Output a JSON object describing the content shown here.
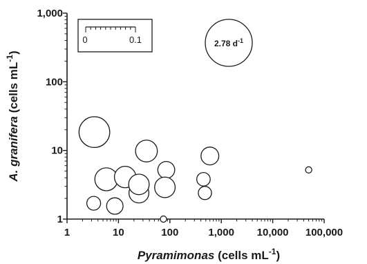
{
  "chart_data": {
    "type": "scatter",
    "xlabel": {
      "italic": "Pyramimonas",
      "rest": " (cells mL",
      "sup": "-1",
      "end": ")"
    },
    "ylabel": {
      "italic": "A. granifera",
      "rest": " (cells mL",
      "sup": "-1",
      "end": ")"
    },
    "x_scale": "log",
    "y_scale": "log",
    "xlim": [
      1,
      100000
    ],
    "ylim": [
      1,
      1000
    ],
    "x_ticks": [
      1,
      10,
      100,
      1000,
      10000,
      100000
    ],
    "x_tick_labels": [
      "1",
      "10",
      "100",
      "1,000",
      "10,000",
      "100,000"
    ],
    "y_ticks": [
      1,
      10,
      100,
      1000
    ],
    "y_tick_labels": [
      "1",
      "10",
      "100",
      "1,000"
    ],
    "size_variable": "rate (d-1)",
    "size_legend": {
      "scale_bar": {
        "min": 0,
        "max": 0.1,
        "label_min": "0",
        "label_max": "0.1"
      },
      "reference_bubble": {
        "value": 2.78,
        "label": "2.78 d",
        "sup": "-1"
      }
    },
    "points": [
      {
        "x": 3.4,
        "y": 18.5,
        "size": 1.19
      },
      {
        "x": 3.3,
        "y": 1.7,
        "size": 0.24
      },
      {
        "x": 8.5,
        "y": 1.55,
        "size": 0.34
      },
      {
        "x": 5.8,
        "y": 3.8,
        "size": 0.66
      },
      {
        "x": 13.5,
        "y": 4.1,
        "size": 0.58
      },
      {
        "x": 25,
        "y": 2.4,
        "size": 0.5
      },
      {
        "x": 25,
        "y": 3.2,
        "size": 0.53
      },
      {
        "x": 35,
        "y": 9.8,
        "size": 0.6
      },
      {
        "x": 85,
        "y": 5.2,
        "size": 0.36
      },
      {
        "x": 80,
        "y": 2.9,
        "size": 0.53
      },
      {
        "x": 75,
        "y": 1.0,
        "size": 0.05
      },
      {
        "x": 450,
        "y": 3.8,
        "size": 0.23
      },
      {
        "x": 480,
        "y": 2.4,
        "size": 0.22
      },
      {
        "x": 600,
        "y": 8.3,
        "size": 0.4
      },
      {
        "x": 50000,
        "y": 5.2,
        "size": 0.05
      }
    ]
  }
}
